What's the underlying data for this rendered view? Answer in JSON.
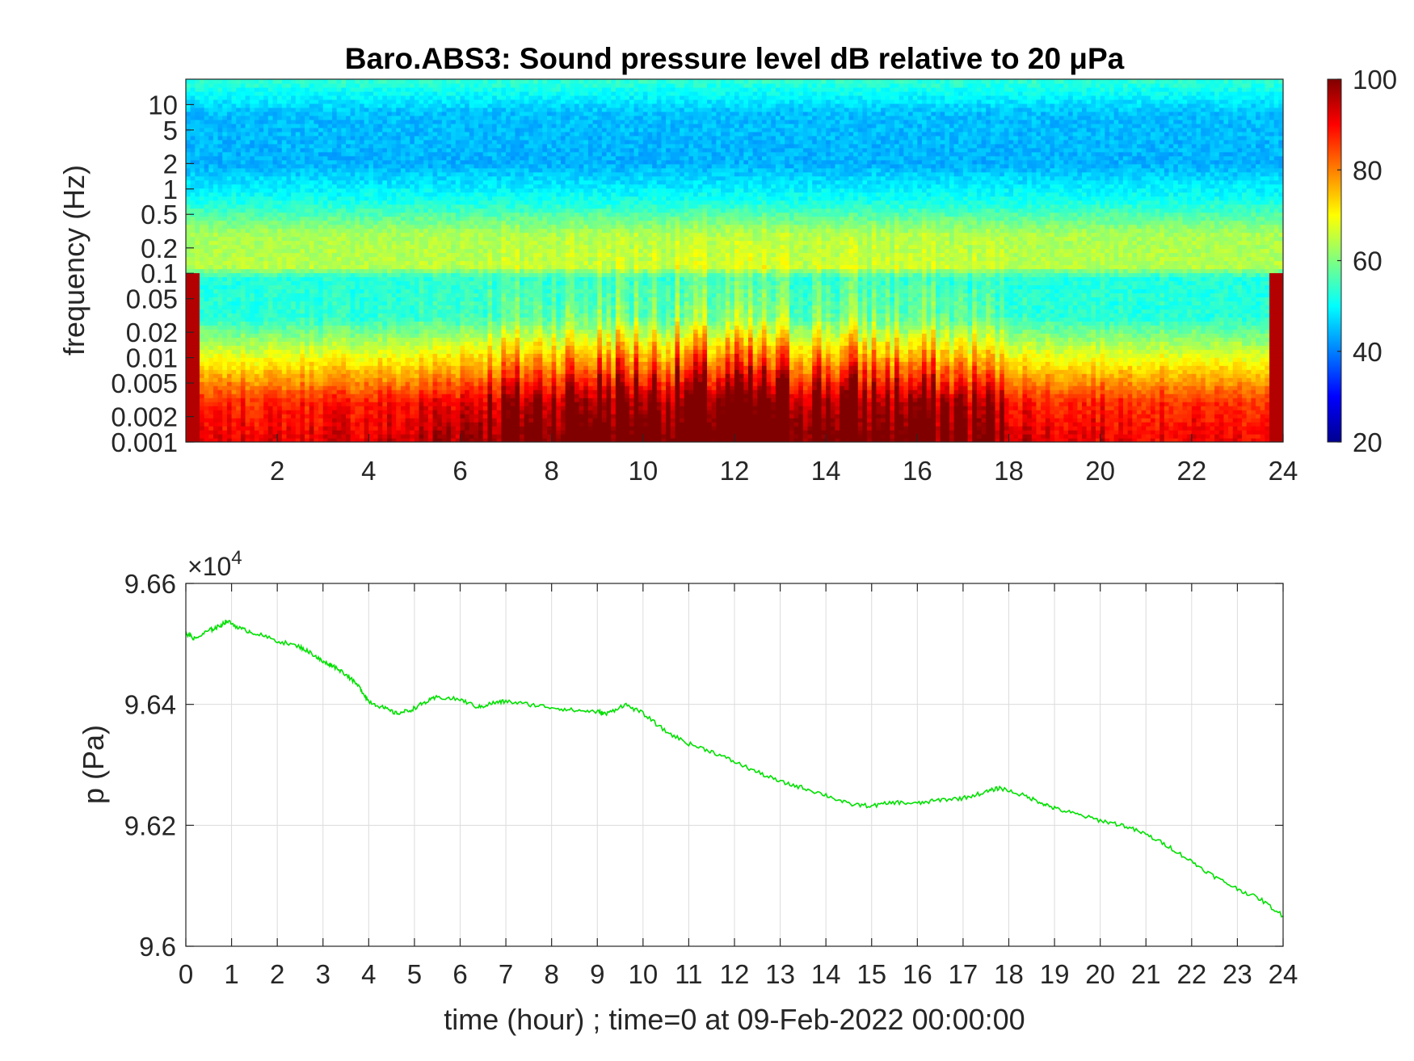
{
  "chart_data": [
    {
      "type": "heatmap",
      "title": "Baro.ABS3: Sound pressure level dB relative to 20 μPa",
      "ylabel": "frequency (Hz)",
      "xlim": [
        0,
        24
      ],
      "x_ticks": [
        "2",
        "4",
        "6",
        "8",
        "10",
        "12",
        "14",
        "16",
        "18",
        "20",
        "22",
        "24"
      ],
      "x_tick_values": [
        2,
        4,
        6,
        8,
        10,
        12,
        14,
        16,
        18,
        20,
        22,
        24
      ],
      "y_scale": "log",
      "ylim": [
        0.001,
        20
      ],
      "y_ticks": [
        "0.001",
        "0.002",
        "0.005",
        "0.01",
        "0.02",
        "0.05",
        "0.1",
        "0.2",
        "0.5",
        "1",
        "2",
        "5",
        "10"
      ],
      "y_tick_values": [
        0.001,
        0.002,
        0.005,
        0.01,
        0.02,
        0.05,
        0.1,
        0.2,
        0.5,
        1,
        2,
        5,
        10
      ],
      "colormap": "jet",
      "colorbar": {
        "min": 20,
        "max": 100,
        "ticks": [
          "20",
          "40",
          "60",
          "80",
          "100"
        ],
        "tick_values": [
          20,
          40,
          60,
          80,
          100
        ]
      },
      "band_levels_db": [
        {
          "freq_hz": 0.001,
          "level_db": 88
        },
        {
          "freq_hz": 0.003,
          "level_db": 84
        },
        {
          "freq_hz": 0.008,
          "level_db": 70
        },
        {
          "freq_hz": 0.03,
          "level_db": 52
        },
        {
          "freq_hz": 0.09,
          "level_db": 52
        },
        {
          "freq_hz": 0.12,
          "level_db": 64
        },
        {
          "freq_hz": 0.3,
          "level_db": 63
        },
        {
          "freq_hz": 0.7,
          "level_db": 52
        },
        {
          "freq_hz": 2,
          "level_db": 44
        },
        {
          "freq_hz": 8,
          "level_db": 45
        },
        {
          "freq_hz": 20,
          "level_db": 54
        }
      ],
      "burst_activity_by_hour": [
        {
          "hour": 0,
          "intensity": 0.1
        },
        {
          "hour": 5,
          "intensity": 0.25
        },
        {
          "hour": 6.5,
          "intensity": 0.6
        },
        {
          "hour": 9.5,
          "intensity": 1.0
        },
        {
          "hour": 12.5,
          "intensity": 1.0
        },
        {
          "hour": 15.5,
          "intensity": 0.85
        },
        {
          "hour": 17.5,
          "intensity": 0.6
        },
        {
          "hour": 18.5,
          "intensity": 0.2
        },
        {
          "hour": 24,
          "intensity": 0.1
        }
      ]
    },
    {
      "type": "line",
      "xlabel": "time (hour) ; time=0 at 09-Feb-2022 00:00:00",
      "ylabel": "p (Pa)",
      "y_exponent_label": "×10",
      "y_exponent_power": "4",
      "xlim": [
        0,
        24
      ],
      "ylim": [
        96000,
        96600
      ],
      "grid": true,
      "x_ticks": [
        "0",
        "1",
        "2",
        "3",
        "4",
        "5",
        "6",
        "7",
        "8",
        "9",
        "10",
        "11",
        "12",
        "13",
        "14",
        "15",
        "16",
        "17",
        "18",
        "19",
        "20",
        "21",
        "22",
        "23",
        "24"
      ],
      "x_tick_values": [
        0,
        1,
        2,
        3,
        4,
        5,
        6,
        7,
        8,
        9,
        10,
        11,
        12,
        13,
        14,
        15,
        16,
        17,
        18,
        19,
        20,
        21,
        22,
        23,
        24
      ],
      "y_ticks": [
        "9.6",
        "9.62",
        "9.64",
        "9.66"
      ],
      "y_tick_values": [
        96000,
        96200,
        96400,
        96600
      ],
      "series": [
        {
          "color": "#00e000",
          "x": [
            0,
            0.2,
            0.5,
            0.7,
            0.9,
            1.2,
            1.5,
            2,
            2.5,
            2.8,
            3,
            3.2,
            3.5,
            3.8,
            4,
            4.3,
            4.6,
            4.9,
            5.2,
            5.5,
            6,
            6.4,
            6.7,
            7,
            7.5,
            8,
            8.5,
            9,
            9.2,
            9.6,
            10,
            10.5,
            11,
            11.5,
            12,
            12.5,
            13,
            13.5,
            14,
            14.5,
            15,
            15.5,
            16,
            16.5,
            17,
            17.5,
            17.8,
            18.3,
            18.7,
            19,
            19.5,
            20,
            20.5,
            21,
            21.5,
            22,
            22.5,
            23,
            23.5,
            24
          ],
          "y": [
            96518,
            96508,
            96522,
            96528,
            96538,
            96525,
            96518,
            96505,
            96495,
            96482,
            96470,
            96465,
            96450,
            96428,
            96405,
            96395,
            96385,
            96390,
            96402,
            96412,
            96408,
            96395,
            96402,
            96405,
            96400,
            96395,
            96390,
            96388,
            96384,
            96400,
            96385,
            96355,
            96335,
            96322,
            96305,
            96288,
            96272,
            96262,
            96250,
            96235,
            96232,
            96238,
            96236,
            96242,
            96245,
            96255,
            96262,
            96250,
            96238,
            96228,
            96218,
            96208,
            96200,
            96185,
            96165,
            96140,
            96115,
            96095,
            96078,
            96050
          ]
        }
      ]
    }
  ]
}
